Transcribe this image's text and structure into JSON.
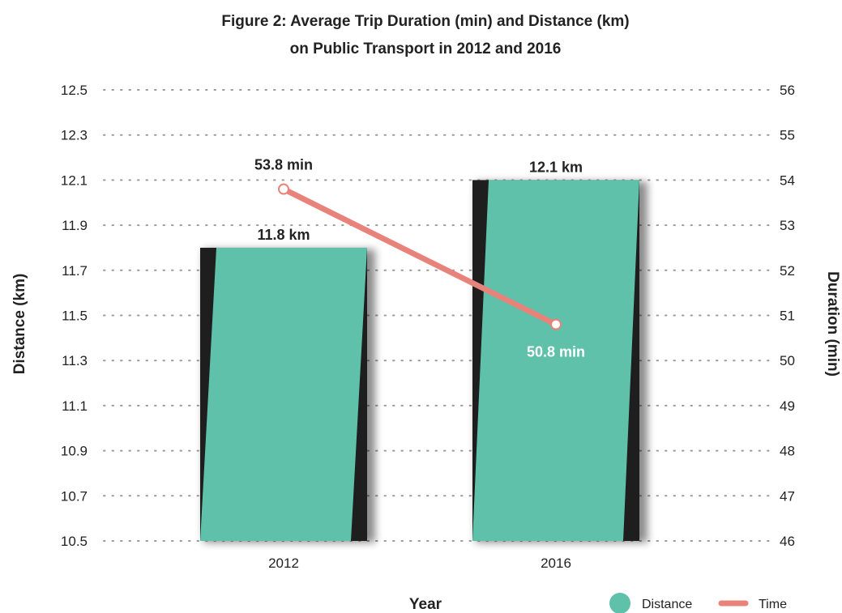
{
  "chart_data": {
    "type": "bar",
    "title_lines": [
      "Figure 2:  Average Trip Duration (min) and Distance (km)",
      "on Public Transport in 2012 and 2016"
    ],
    "xlabel": "Year",
    "ylabel_left": "Distance (km)",
    "ylabel_right": "Duration (min)",
    "categories": [
      "2012",
      "2016"
    ],
    "series": [
      {
        "name": "Distance",
        "type": "bar",
        "axis": "left",
        "values": [
          11.8,
          12.1
        ],
        "labels": [
          "11.8 km",
          "12.1 km"
        ],
        "color": "#5fc1aa"
      },
      {
        "name": "Time",
        "type": "line",
        "axis": "right",
        "values": [
          53.8,
          50.8
        ],
        "labels": [
          "53.8 min",
          "50.8 min"
        ],
        "color": "#e8837b"
      }
    ],
    "y_left": {
      "min": 10.5,
      "max": 12.5,
      "ticks": [
        "10.5",
        "10.7",
        "10.9",
        "11.1",
        "11.3",
        "11.5",
        "11.7",
        "11.9",
        "12.1",
        "12.3",
        "12.5"
      ]
    },
    "y_right": {
      "min": 46,
      "max": 56,
      "ticks": [
        "46",
        "47",
        "48",
        "49",
        "50",
        "51",
        "52",
        "53",
        "54",
        "55",
        "56"
      ]
    },
    "grid": "horizontal dotted",
    "legend_position": "bottom-right",
    "colors": {
      "bar": "#5fc1aa",
      "bar_shadow": "#1e1e1e",
      "line": "#e8837b",
      "text": "#222222",
      "grid": "#9a9a9a"
    }
  }
}
